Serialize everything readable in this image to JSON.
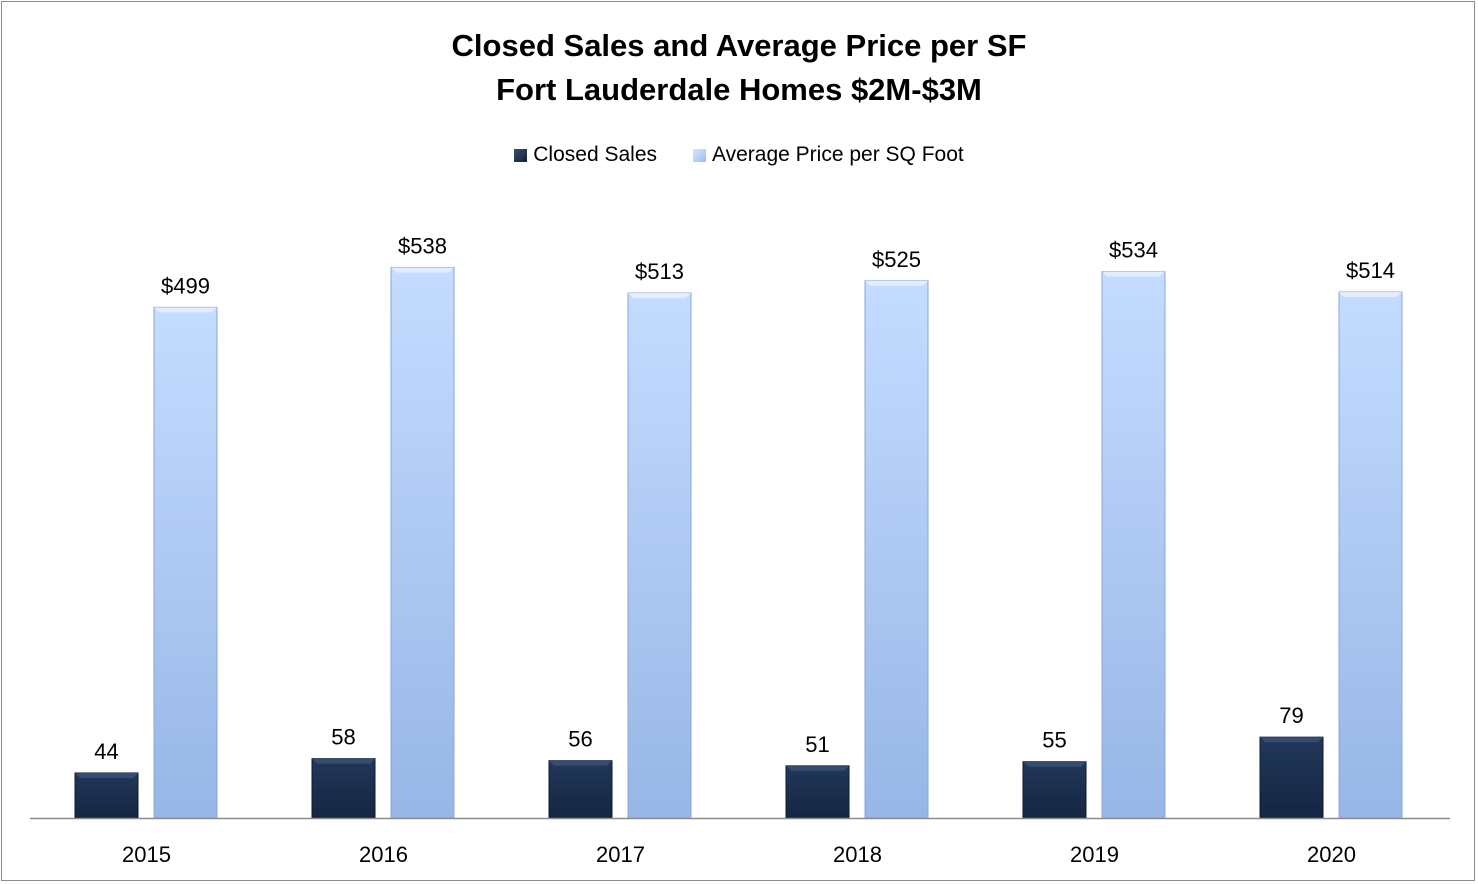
{
  "chart_data": {
    "type": "bar",
    "title": "Closed Sales and Average Price per SF",
    "subtitle": "Fort Lauderdale Homes $2M-$3M",
    "categories": [
      "2015",
      "2016",
      "2017",
      "2018",
      "2019",
      "2020"
    ],
    "series": [
      {
        "name": "Closed Sales",
        "values": [
          44,
          58,
          56,
          51,
          55,
          79
        ],
        "labels": [
          "44",
          "58",
          "56",
          "51",
          "55",
          "79"
        ],
        "color": "#17294a"
      },
      {
        "name": "Average Price per SQ Foot",
        "values": [
          499,
          538,
          513,
          525,
          534,
          514
        ],
        "labels": [
          "$499",
          "$538",
          "$513",
          "$525",
          "$534",
          "$514"
        ],
        "color": "#b3cdf5"
      }
    ],
    "xlabel": "",
    "ylabel": "",
    "ylim": [
      0,
      600
    ],
    "grid": false,
    "legend": "top-center"
  }
}
